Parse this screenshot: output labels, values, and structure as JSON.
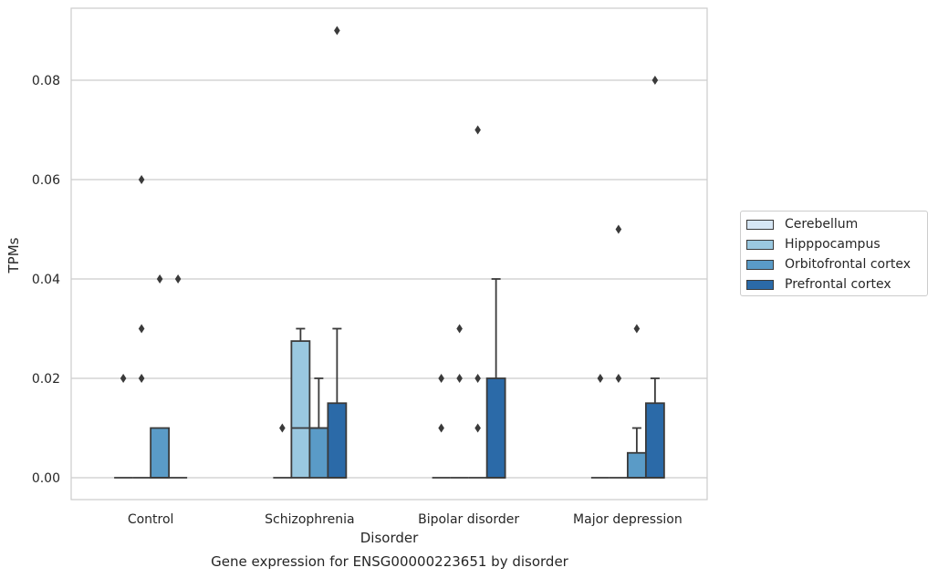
{
  "chart_data": {
    "type": "box",
    "title": "",
    "caption": "Gene expression for ENSG00000223651 by disorder",
    "xlabel": "Disorder",
    "ylabel": "TPMs",
    "ylim": [
      -0.0045,
      0.0945
    ],
    "yticks": [
      0.0,
      0.02,
      0.04,
      0.06,
      0.08
    ],
    "ytick_labels": [
      "0.00",
      "0.02",
      "0.04",
      "0.06",
      "0.08"
    ],
    "grid": "horizontal",
    "legend_position": "right",
    "categories": [
      "Control",
      "Schizophrenia",
      "Bipolar disorder",
      "Major depression"
    ],
    "series": [
      {
        "name": "Cerebellum",
        "color": "#d6e6f4",
        "boxes": [
          {
            "q1": 0,
            "median": 0,
            "q3": 0,
            "whisker_low": 0,
            "whisker_high": 0,
            "outliers": [
              0.02
            ]
          },
          {
            "q1": 0,
            "median": 0,
            "q3": 0,
            "whisker_low": 0,
            "whisker_high": 0,
            "outliers": [
              0.01
            ]
          },
          {
            "q1": 0,
            "median": 0,
            "q3": 0,
            "whisker_low": 0,
            "whisker_high": 0,
            "outliers": [
              0.01,
              0.02
            ]
          },
          {
            "q1": 0,
            "median": 0,
            "q3": 0,
            "whisker_low": 0,
            "whisker_high": 0,
            "outliers": [
              0.02
            ]
          }
        ]
      },
      {
        "name": "Hipppocampus",
        "color": "#9ac8e0",
        "boxes": [
          {
            "q1": 0,
            "median": 0,
            "q3": 0,
            "whisker_low": 0,
            "whisker_high": 0,
            "outliers": [
              0.02,
              0.03,
              0.06
            ]
          },
          {
            "q1": 0,
            "median": 0.01,
            "q3": 0.0275,
            "whisker_low": 0,
            "whisker_high": 0.03,
            "outliers": []
          },
          {
            "q1": 0,
            "median": 0,
            "q3": 0,
            "whisker_low": 0,
            "whisker_high": 0,
            "outliers": [
              0.02,
              0.03
            ]
          },
          {
            "q1": 0,
            "median": 0,
            "q3": 0,
            "whisker_low": 0,
            "whisker_high": 0,
            "outliers": [
              0.02,
              0.05
            ]
          }
        ]
      },
      {
        "name": "Orbitofrontal cortex",
        "color": "#5a9bc7",
        "boxes": [
          {
            "q1": 0,
            "median": 0,
            "q3": 0.01,
            "whisker_low": 0,
            "whisker_high": 0.01,
            "outliers": [
              0.04
            ]
          },
          {
            "q1": 0,
            "median": 0.01,
            "q3": 0.01,
            "whisker_low": 0,
            "whisker_high": 0.02,
            "outliers": []
          },
          {
            "q1": 0,
            "median": 0,
            "q3": 0,
            "whisker_low": 0,
            "whisker_high": 0,
            "outliers": [
              0.01,
              0.02,
              0.07
            ]
          },
          {
            "q1": 0,
            "median": 0,
            "q3": 0.005,
            "whisker_low": 0,
            "whisker_high": 0.01,
            "outliers": [
              0.03
            ]
          }
        ]
      },
      {
        "name": "Prefrontal cortex",
        "color": "#2b6aa8",
        "boxes": [
          {
            "q1": 0,
            "median": 0,
            "q3": 0,
            "whisker_low": 0,
            "whisker_high": 0,
            "outliers": [
              0.04
            ]
          },
          {
            "q1": 0,
            "median": 0,
            "q3": 0.015,
            "whisker_low": 0,
            "whisker_high": 0.03,
            "outliers": [
              0.09
            ]
          },
          {
            "q1": 0,
            "median": 0,
            "q3": 0.02,
            "whisker_low": 0,
            "whisker_high": 0.04,
            "outliers": []
          },
          {
            "q1": 0,
            "median": 0,
            "q3": 0.015,
            "whisker_low": 0,
            "whisker_high": 0.02,
            "outliers": [
              0.08
            ]
          }
        ]
      }
    ]
  }
}
